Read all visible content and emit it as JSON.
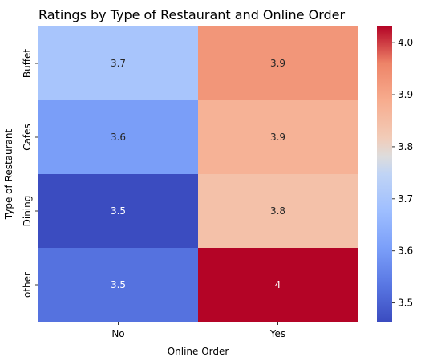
{
  "chart_data": {
    "type": "heatmap",
    "title": "Ratings by Type of Restaurant and Online Order",
    "xlabel": "Online Order",
    "ylabel": "Type of Restaurant",
    "x_categories": [
      "No",
      "Yes"
    ],
    "y_categories": [
      "Buffet",
      "Cafes",
      "Dining",
      "other"
    ],
    "values": [
      [
        3.7,
        3.9
      ],
      [
        3.6,
        3.9
      ],
      [
        3.5,
        3.8
      ],
      [
        3.5,
        4.0
      ]
    ],
    "cell_values": [
      [
        3.698,
        3.929
      ],
      [
        3.604,
        3.876
      ],
      [
        3.464,
        3.842
      ],
      [
        3.526,
        4.031
      ]
    ],
    "cell_labels": [
      [
        "3.7",
        "3.9"
      ],
      [
        "3.6",
        "3.9"
      ],
      [
        "3.5",
        "3.8"
      ],
      [
        "3.5",
        "4"
      ]
    ],
    "colormap": "coolwarm",
    "color_range": [
      3.464,
      4.031
    ],
    "colorbar_ticks": [
      3.5,
      3.6,
      3.7,
      3.8,
      3.9,
      4.0
    ],
    "colorbar_tick_labels": [
      "3.5",
      "3.6",
      "3.7",
      "3.8",
      "3.9",
      "4.0"
    ],
    "grid": false,
    "legend": "colorbar-right"
  }
}
